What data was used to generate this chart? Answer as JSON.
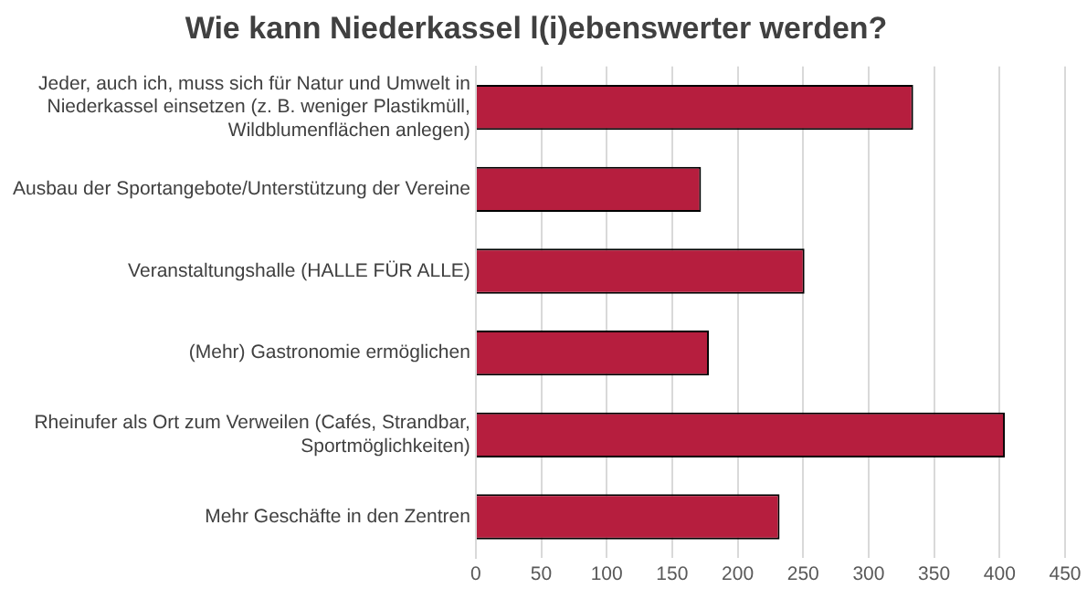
{
  "chart_data": {
    "type": "bar",
    "orientation": "horizontal",
    "title": "Wie kann Niederkassel l(i)ebenswerter werden?",
    "categories": [
      "Jeder, auch ich, muss sich für Natur und Umwelt in Niederkassel einsetzen (z. B. weniger Plastikmüll, Wildblumenflächen anlegen)",
      "Ausbau der Sportangebote/Unterstützung der Vereine",
      "Veranstaltungshalle (HALLE FÜR ALLE)",
      "(Mehr) Gastronomie ermöglichen",
      "Rheinufer als Ort zum Verweilen (Cafés, Strandbar, Sportmöglichkeiten)",
      "Mehr Geschäfte in den Zentren"
    ],
    "values": [
      334,
      172,
      251,
      178,
      404,
      232
    ],
    "color": "#b61e3e",
    "xlim": [
      0,
      450
    ],
    "xticks": [
      0,
      50,
      100,
      150,
      200,
      250,
      300,
      350,
      400,
      450
    ],
    "grid": "x",
    "legend": false
  }
}
